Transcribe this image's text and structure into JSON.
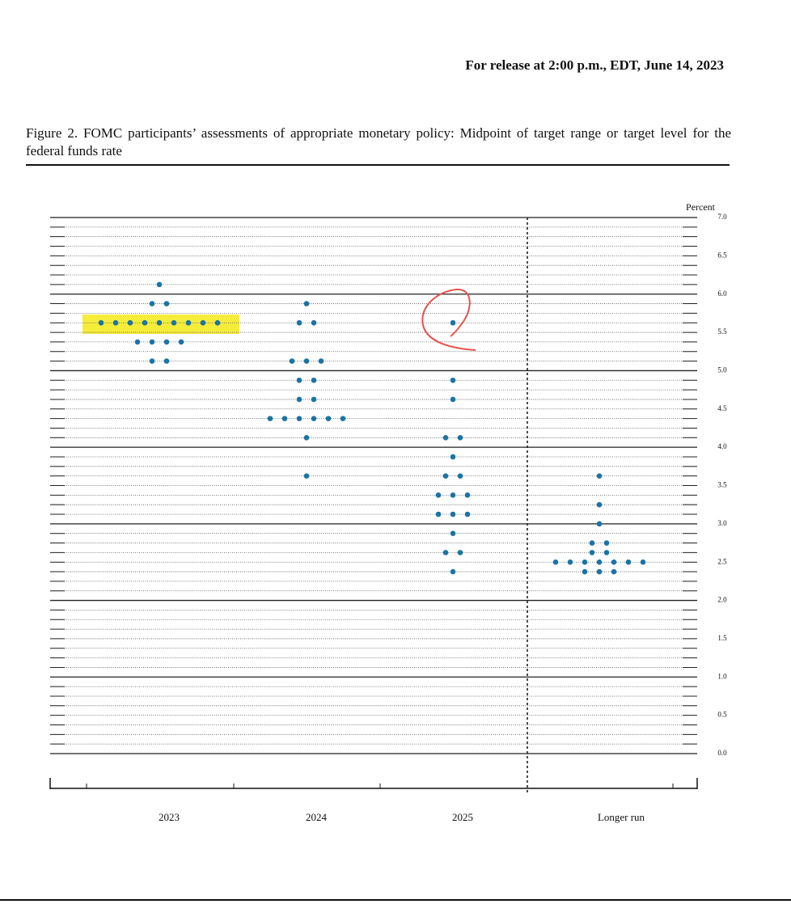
{
  "header": "For release at 2:00 p.m., EDT, June 14, 2023",
  "chart_data": {
    "type": "dot",
    "title": "Figure 2.  FOMC participants’ assessments of appropriate monetary policy:  Midpoint of target range or target level for the federal funds rate",
    "y_label": "Percent",
    "color": "#1b74a3",
    "categories": [
      "2023",
      "2024",
      "2025",
      "Longer run"
    ],
    "values": [
      [
        6.125,
        5.875,
        5.875,
        5.625,
        5.625,
        5.625,
        5.625,
        5.625,
        5.625,
        5.625,
        5.625,
        5.625,
        5.375,
        5.375,
        5.375,
        5.375,
        5.125,
        5.125
      ],
      [
        5.875,
        5.625,
        5.625,
        5.125,
        5.125,
        5.125,
        4.875,
        4.875,
        4.625,
        4.625,
        4.375,
        4.375,
        4.375,
        4.375,
        4.375,
        4.375,
        4.125,
        3.625
      ],
      [
        5.625,
        4.875,
        4.625,
        4.125,
        4.125,
        3.875,
        3.625,
        3.625,
        3.375,
        3.375,
        3.375,
        3.125,
        3.125,
        3.125,
        2.875,
        2.625,
        2.625,
        2.375
      ],
      [
        3.625,
        3.25,
        3,
        2.75,
        2.75,
        2.625,
        2.625,
        2.5,
        2.5,
        2.5,
        2.5,
        2.5,
        2.5,
        2.5,
        2.375,
        2.375,
        2.375
      ]
    ],
    "ylim": [
      0,
      7
    ],
    "yticks": [
      {
        "value": 0,
        "label": "0.0"
      },
      {
        "value": 0.5,
        "label": "0.5"
      },
      {
        "value": 1,
        "label": "1.0"
      },
      {
        "value": 1.5,
        "label": "1.5"
      },
      {
        "value": 2,
        "label": "2.0"
      },
      {
        "value": 2.5,
        "label": "2.5"
      },
      {
        "value": 3,
        "label": "3.0"
      },
      {
        "value": 3.5,
        "label": "3.5"
      },
      {
        "value": 4,
        "label": "4.0"
      },
      {
        "value": 4.5,
        "label": "4.5"
      },
      {
        "value": 5,
        "label": "5.0"
      },
      {
        "value": 5.5,
        "label": "5.5"
      },
      {
        "value": 6,
        "label": "6.0"
      },
      {
        "value": 6.5,
        "label": "6.5"
      },
      {
        "value": 7,
        "label": "7.0"
      }
    ],
    "gridlines": [
      0,
      0.125,
      0.25,
      0.375,
      0.5,
      0.625,
      0.75,
      0.875,
      1,
      1.125,
      1.25,
      1.375,
      1.5,
      1.625,
      1.75,
      1.875,
      2,
      2.125,
      2.25,
      2.375,
      2.5,
      2.625,
      2.75,
      2.875,
      3,
      3.125,
      3.25,
      3.375,
      3.5,
      3.625,
      3.75,
      3.875,
      4,
      4.125,
      4.25,
      4.375,
      4.5,
      4.625,
      4.75,
      4.875,
      5,
      5.125,
      5.25,
      5.375,
      5.5,
      5.625,
      5.75,
      5.875,
      6,
      6.125,
      6.25,
      6.375,
      6.5,
      6.625,
      6.75,
      6.875,
      7
    ]
  }
}
